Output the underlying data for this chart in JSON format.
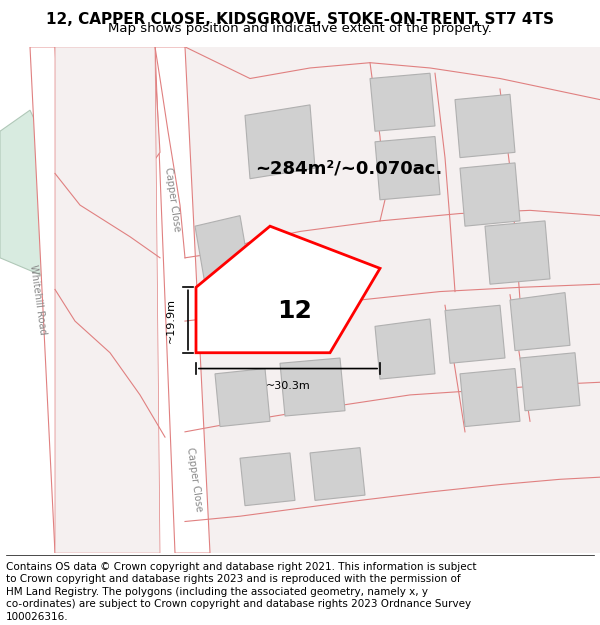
{
  "title_line1": "12, CAPPER CLOSE, KIDSGROVE, STOKE-ON-TRENT, ST7 4TS",
  "title_line2": "Map shows position and indicative extent of the property.",
  "footer_text": "Contains OS data © Crown copyright and database right 2021. This information is subject to Crown copyright and database rights 2023 and is reproduced with the permission of HM Land Registry. The polygons (including the associated geometry, namely x, y co-ordinates) are subject to Crown copyright and database rights 2023 Ordnance Survey 100026316.",
  "area_label": "~284m²/~0.070ac.",
  "number_label": "12",
  "dim_width": "~30.3m",
  "dim_height": "~19.9m",
  "map_bg": "#f5f0f0",
  "road_fill": "#ffffff",
  "building_fill": "#d8d8d8",
  "plot_color": "#ff0000",
  "road_stroke": "#e08080",
  "green_area": "#d8ebe0",
  "title_fontsize": 11,
  "subtitle_fontsize": 9.5,
  "footer_fontsize": 7.5
}
